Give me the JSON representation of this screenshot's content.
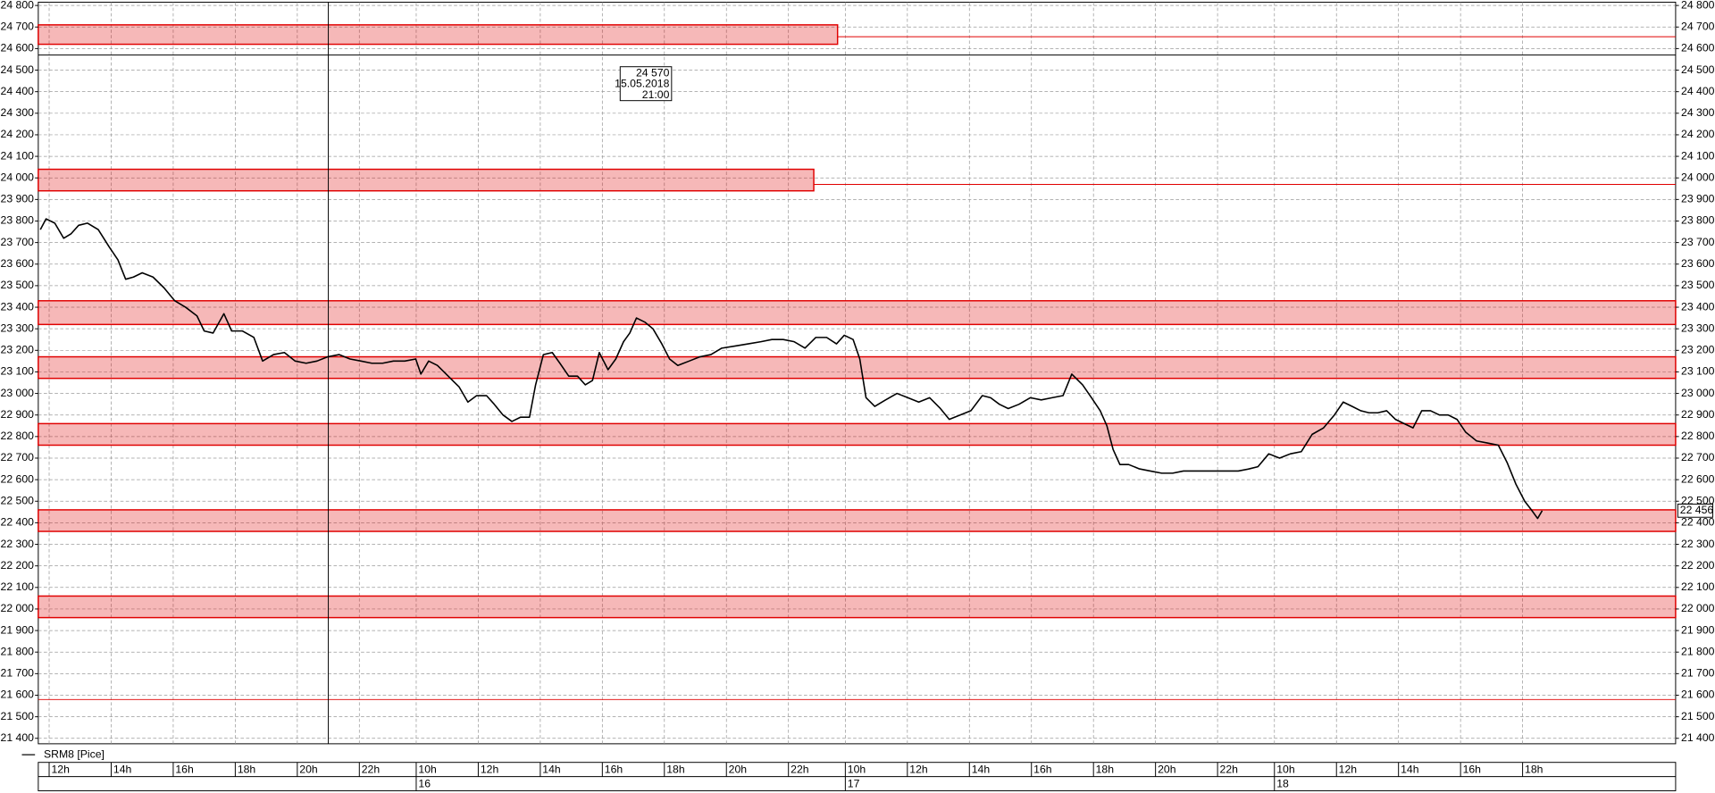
{
  "chart_data": {
    "type": "line",
    "xlim": [
      99,
      3266
    ],
    "ylim": [
      21400,
      24800
    ],
    "grid": true,
    "xticks": [
      {
        "value": 120,
        "label": "12h"
      },
      {
        "value": 240,
        "label": "14h"
      },
      {
        "value": 360,
        "label": "16h"
      },
      {
        "value": 480,
        "label": "18h"
      },
      {
        "value": 600,
        "label": "20h"
      },
      {
        "value": 720,
        "label": "22h"
      },
      {
        "value": 830,
        "label": "10h"
      },
      {
        "value": 950,
        "label": "12h"
      },
      {
        "value": 1070,
        "label": "14h"
      },
      {
        "value": 1190,
        "label": "16h"
      },
      {
        "value": 1310,
        "label": "18h"
      },
      {
        "value": 1430,
        "label": "20h"
      },
      {
        "value": 1550,
        "label": "22h"
      },
      {
        "value": 1660,
        "label": "10h"
      },
      {
        "value": 1780,
        "label": "12h"
      },
      {
        "value": 1900,
        "label": "14h"
      },
      {
        "value": 2020,
        "label": "16h"
      },
      {
        "value": 2140,
        "label": "18h"
      },
      {
        "value": 2260,
        "label": "20h"
      },
      {
        "value": 2380,
        "label": "22h"
      },
      {
        "value": 2490,
        "label": "10h"
      },
      {
        "value": 2610,
        "label": "12h"
      },
      {
        "value": 2730,
        "label": "14h"
      },
      {
        "value": 2850,
        "label": "16h"
      },
      {
        "value": 2970,
        "label": "18h"
      }
    ],
    "day_ticks": [
      {
        "value": 830,
        "label": "16"
      },
      {
        "value": 1660,
        "label": "17"
      },
      {
        "value": 2490,
        "label": "18"
      }
    ],
    "yticks": [
      {
        "value": 21400,
        "label": "21 400"
      },
      {
        "value": 21500,
        "label": "21 500"
      },
      {
        "value": 21600,
        "label": "21 600"
      },
      {
        "value": 21700,
        "label": "21 700"
      },
      {
        "value": 21800,
        "label": "21 800"
      },
      {
        "value": 21900,
        "label": "21 900"
      },
      {
        "value": 22000,
        "label": "22 000"
      },
      {
        "value": 22100,
        "label": "22 100"
      },
      {
        "value": 22200,
        "label": "22 200"
      },
      {
        "value": 22300,
        "label": "22 300"
      },
      {
        "value": 22400,
        "label": "22 400"
      },
      {
        "value": 22500,
        "label": "22 500"
      },
      {
        "value": 22600,
        "label": "22 600"
      },
      {
        "value": 22700,
        "label": "22 700"
      },
      {
        "value": 22800,
        "label": "22 800"
      },
      {
        "value": 22900,
        "label": "22 900"
      },
      {
        "value": 23000,
        "label": "23 000"
      },
      {
        "value": 23100,
        "label": "23 100"
      },
      {
        "value": 23200,
        "label": "23 200"
      },
      {
        "value": 23300,
        "label": "23 300"
      },
      {
        "value": 23400,
        "label": "23 400"
      },
      {
        "value": 23500,
        "label": "23 500"
      },
      {
        "value": 23600,
        "label": "23 600"
      },
      {
        "value": 23700,
        "label": "23 700"
      },
      {
        "value": 23800,
        "label": "23 800"
      },
      {
        "value": 23900,
        "label": "23 900"
      },
      {
        "value": 24000,
        "label": "24 000"
      },
      {
        "value": 24100,
        "label": "24 100"
      },
      {
        "value": 24200,
        "label": "24 200"
      },
      {
        "value": 24300,
        "label": "24 300"
      },
      {
        "value": 24400,
        "label": "24 400"
      },
      {
        "value": 24500,
        "label": "24 500"
      },
      {
        "value": 24600,
        "label": "24 600"
      },
      {
        "value": 24700,
        "label": "24 700"
      },
      {
        "value": 24800,
        "label": "24 800"
      }
    ],
    "x": [
      103,
      114,
      131,
      148,
      162,
      177,
      194,
      215,
      236,
      253,
      268,
      283,
      300,
      321,
      342,
      363,
      384,
      406,
      420,
      437,
      458,
      473,
      494,
      516,
      533,
      554,
      575,
      596,
      617,
      638,
      659,
      681,
      702,
      723,
      744,
      765,
      786,
      808,
      829,
      839,
      854,
      871,
      892,
      913,
      930,
      947,
      966,
      981,
      998,
      1015,
      1032,
      1049,
      1061,
      1076,
      1093,
      1108,
      1125,
      1142,
      1157,
      1171,
      1184,
      1201,
      1216,
      1231,
      1243,
      1256,
      1273,
      1288,
      1305,
      1320,
      1336,
      1358,
      1379,
      1400,
      1421,
      1446,
      1472,
      1497,
      1518,
      1540,
      1561,
      1582,
      1603,
      1624,
      1643,
      1658,
      1675,
      1688,
      1700,
      1717,
      1738,
      1760,
      1781,
      1802,
      1823,
      1844,
      1861,
      1882,
      1903,
      1925,
      1941,
      1958,
      1975,
      1996,
      2018,
      2039,
      2060,
      2081,
      2098,
      2119,
      2136,
      2153,
      2166,
      2178,
      2191,
      2208,
      2229,
      2250,
      2272,
      2293,
      2314,
      2335,
      2356,
      2377,
      2398,
      2420,
      2441,
      2458,
      2479,
      2500,
      2521,
      2542,
      2563,
      2585,
      2606,
      2623,
      2640,
      2657,
      2673,
      2690,
      2707,
      2724,
      2741,
      2758,
      2775,
      2792,
      2809,
      2826,
      2843,
      2860,
      2881,
      2902,
      2923,
      2940,
      2957,
      2974,
      2987,
      2999,
      3008
    ],
    "series": [
      {
        "name": "SRM8 [Pice]",
        "color": "#000000",
        "values": [
          23760,
          23810,
          23790,
          23720,
          23740,
          23780,
          23790,
          23760,
          23680,
          23620,
          23530,
          23540,
          23560,
          23540,
          23490,
          23430,
          23400,
          23360,
          23290,
          23280,
          23370,
          23290,
          23290,
          23260,
          23150,
          23180,
          23190,
          23150,
          23140,
          23150,
          23170,
          23180,
          23160,
          23150,
          23140,
          23140,
          23150,
          23150,
          23160,
          23090,
          23150,
          23130,
          23080,
          23030,
          22960,
          22990,
          22990,
          22950,
          22900,
          22870,
          22890,
          22890,
          23040,
          23180,
          23190,
          23140,
          23080,
          23080,
          23040,
          23060,
          23190,
          23110,
          23160,
          23240,
          23280,
          23350,
          23330,
          23300,
          23230,
          23160,
          23130,
          23150,
          23170,
          23180,
          23210,
          23220,
          23230,
          23240,
          23250,
          23250,
          23240,
          23210,
          23260,
          23260,
          23230,
          23270,
          23250,
          23160,
          22980,
          22940,
          22970,
          23000,
          22980,
          22960,
          22980,
          22930,
          22880,
          22900,
          22920,
          22990,
          22980,
          22950,
          22930,
          22950,
          22980,
          22970,
          22980,
          22990,
          23090,
          23040,
          22980,
          22920,
          22850,
          22740,
          22670,
          22670,
          22650,
          22640,
          22630,
          22630,
          22640,
          22640,
          22640,
          22640,
          22640,
          22640,
          22650,
          22660,
          22720,
          22700,
          22720,
          22730,
          22810,
          22840,
          22900,
          22960,
          22940,
          22920,
          22910,
          22910,
          22920,
          22880,
          22860,
          22840,
          22920,
          22920,
          22900,
          22900,
          22880,
          22820,
          22780,
          22770,
          22760,
          22680,
          22580,
          22500,
          22460,
          22420,
          22456
        ]
      }
    ],
    "zones": [
      {
        "low": 24620,
        "high": 24710,
        "end": 1645,
        "level": 24655
      },
      {
        "low": 23940,
        "high": 24040,
        "end": 1599,
        "level": 23970
      },
      {
        "low": 23320,
        "high": 23430
      },
      {
        "low": 23070,
        "high": 23170
      },
      {
        "low": 22760,
        "high": 22860
      },
      {
        "low": 22360,
        "high": 22460
      },
      {
        "low": 21960,
        "high": 22060
      }
    ],
    "zone_color": "#e00000",
    "lines": [
      {
        "value": 21580,
        "color": "#e00000"
      }
    ],
    "crosshair": {
      "x": 660,
      "y": 24570,
      "price_label": "24 570",
      "date_label": "15.05.2018",
      "time_label": "21:00"
    },
    "last_value": {
      "value": 22456,
      "label": "22 456"
    }
  }
}
